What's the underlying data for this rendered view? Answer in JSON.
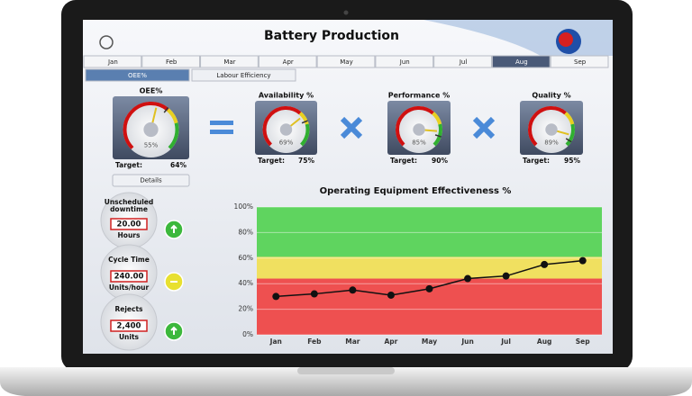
{
  "header": {
    "title": "Battery Production"
  },
  "month_tabs": [
    {
      "label": "Jan",
      "selected": false
    },
    {
      "label": "Feb",
      "selected": false
    },
    {
      "label": "Mar",
      "selected": false
    },
    {
      "label": "Apr",
      "selected": false
    },
    {
      "label": "May",
      "selected": false
    },
    {
      "label": "Jun",
      "selected": false
    },
    {
      "label": "Jul",
      "selected": false
    },
    {
      "label": "Aug",
      "selected": true
    },
    {
      "label": "Sep",
      "selected": false
    }
  ],
  "view_tabs": [
    {
      "label": "OEE%",
      "selected": true
    },
    {
      "label": "Labour Efficiency",
      "selected": false
    }
  ],
  "gauges": [
    {
      "title": "OEE%",
      "value": 55,
      "value_label": "55%",
      "target_caption": "Target:",
      "target": 64,
      "target_label": "64%"
    },
    {
      "title": "Availability %",
      "value": 69,
      "value_label": "69%",
      "target_caption": "Target:",
      "target": 75,
      "target_label": "75%"
    },
    {
      "title": "Performance %",
      "value": 85,
      "value_label": "85%",
      "target_caption": "Target:",
      "target": 90,
      "target_label": "90%"
    },
    {
      "title": "Quality %",
      "value": 89,
      "value_label": "89%",
      "target_caption": "Target:",
      "target": 95,
      "target_label": "95%"
    }
  ],
  "details_button": "Details",
  "kpis": [
    {
      "title_lines": [
        "Unscheduled",
        "downtime"
      ],
      "value": "20.00",
      "unit": "Hours",
      "status": "up"
    },
    {
      "title_lines": [
        "Cycle Time"
      ],
      "value": "240.00",
      "unit": "Units/hour",
      "status": "neutral"
    },
    {
      "title_lines": [
        "Rejects"
      ],
      "value": "2,400",
      "unit": "Units",
      "status": "up"
    }
  ],
  "chart_data": {
    "type": "line",
    "title": "Operating Equipment Effectiveness %",
    "categories": [
      "Jan",
      "Feb",
      "Mar",
      "Apr",
      "May",
      "Jun",
      "Jul",
      "Aug",
      "Sep"
    ],
    "values": [
      30,
      32,
      35,
      31,
      36,
      44,
      46,
      55,
      58
    ],
    "color": "#111111",
    "ylim": [
      0,
      100
    ],
    "yticks": [
      {
        "value": 0,
        "label": "0%"
      },
      {
        "value": 20,
        "label": "20%"
      },
      {
        "value": 40,
        "label": "40%"
      },
      {
        "value": 60,
        "label": "60%"
      },
      {
        "value": 80,
        "label": "80%"
      },
      {
        "value": 100,
        "label": "100%"
      }
    ],
    "bands": [
      {
        "from": 0,
        "to": 44,
        "color": "#ee5050"
      },
      {
        "from": 44,
        "to": 61,
        "color": "#f0e060"
      },
      {
        "from": 61,
        "to": 100,
        "color": "#5fd45f"
      }
    ],
    "grid": true
  }
}
